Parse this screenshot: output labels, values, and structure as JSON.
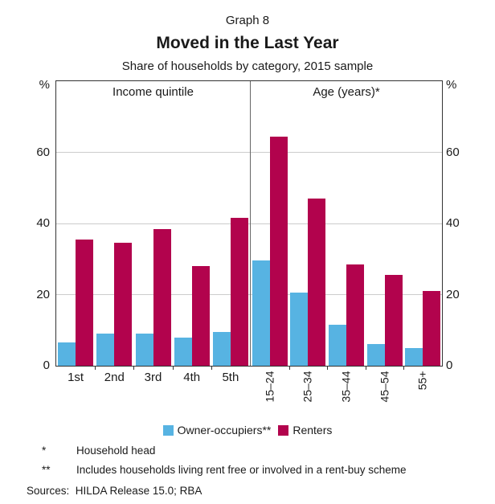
{
  "header": {
    "graph_number": "Graph 8",
    "title": "Moved in the Last Year",
    "subtitle": "Share of households by category, 2015 sample"
  },
  "chart_data": {
    "type": "bar",
    "unit": "%",
    "ylim": [
      0,
      80
    ],
    "yticks": [
      0,
      20,
      40,
      60
    ],
    "grid": true,
    "legend_position": "bottom",
    "panels": [
      {
        "label": "Income quintile",
        "categories": [
          "1st",
          "2nd",
          "3rd",
          "4th",
          "5th"
        ],
        "tick_rotation": 0,
        "series": [
          {
            "name": "Owner-occupiers**",
            "color": "#57B3E2",
            "values": [
              6.5,
              9,
              9,
              8,
              9.5
            ]
          },
          {
            "name": "Renters",
            "color": "#B2034D",
            "values": [
              35.5,
              34.5,
              38.5,
              28,
              41.5
            ]
          }
        ]
      },
      {
        "label": "Age (years)*",
        "categories": [
          "15–24",
          "25–34",
          "35–44",
          "45–54",
          "55+"
        ],
        "tick_rotation": 90,
        "series": [
          {
            "name": "Owner-occupiers**",
            "color": "#57B3E2",
            "values": [
              29.5,
              20.5,
              11.5,
              6,
              5
            ]
          },
          {
            "name": "Renters",
            "color": "#B2034D",
            "values": [
              64.5,
              47,
              28.5,
              25.5,
              21
            ]
          }
        ]
      }
    ],
    "legend": [
      {
        "label": "Owner-occupiers**",
        "color": "#57B3E2"
      },
      {
        "label": "Renters",
        "color": "#B2034D"
      }
    ]
  },
  "footnotes": [
    {
      "marker": "*",
      "text": "Household head"
    },
    {
      "marker": "**",
      "text": "Includes households living rent free or involved in a rent-buy scheme"
    }
  ],
  "sources": "Sources:  HILDA Release 15.0; RBA"
}
